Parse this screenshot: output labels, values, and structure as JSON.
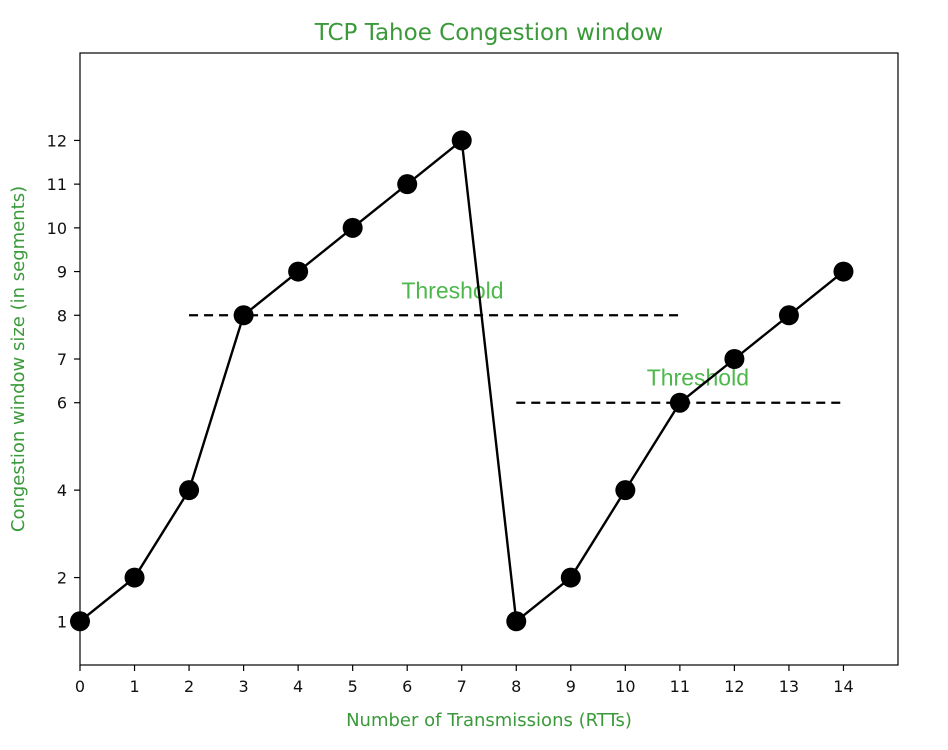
{
  "chart_data": {
    "type": "line",
    "title": "TCP Tahoe Congestion window",
    "xlabel": "Number of Transmissions (RTTs)",
    "ylabel": "Congestion window size (in segments)",
    "x_ticks": [
      "0",
      "1",
      "2",
      "3",
      "4",
      "5",
      "6",
      "7",
      "8",
      "9",
      "10",
      "11",
      "12",
      "13",
      "14"
    ],
    "y_ticks": [
      "1",
      "2",
      "4",
      "6",
      "7",
      "8",
      "9",
      "10",
      "11",
      "12"
    ],
    "xlim": [
      0,
      15
    ],
    "ylim": [
      0,
      14
    ],
    "grid": false,
    "series": [
      {
        "color": "#000000",
        "marker": "circle",
        "x": [
          0,
          1,
          2,
          3,
          4,
          5,
          6,
          7,
          8,
          9,
          10,
          11,
          12,
          13,
          14
        ],
        "y": [
          1,
          2,
          4,
          8,
          9,
          10,
          11,
          12,
          1,
          2,
          4,
          6,
          7,
          8,
          9
        ]
      }
    ],
    "thresholds": [
      {
        "label": "Threshold",
        "y": 8,
        "x_start": 2,
        "x_end": 11,
        "style": "dashed",
        "color": "#000000"
      },
      {
        "label": "Threshold",
        "y": 6,
        "x_start": 8,
        "x_end": 14,
        "style": "dashed",
        "color": "#000000"
      }
    ],
    "colors": {
      "title": "#3a9a3a",
      "axis_labels": "#3a9a3a",
      "annotations": "#4cb84c",
      "line": "#000000"
    }
  }
}
